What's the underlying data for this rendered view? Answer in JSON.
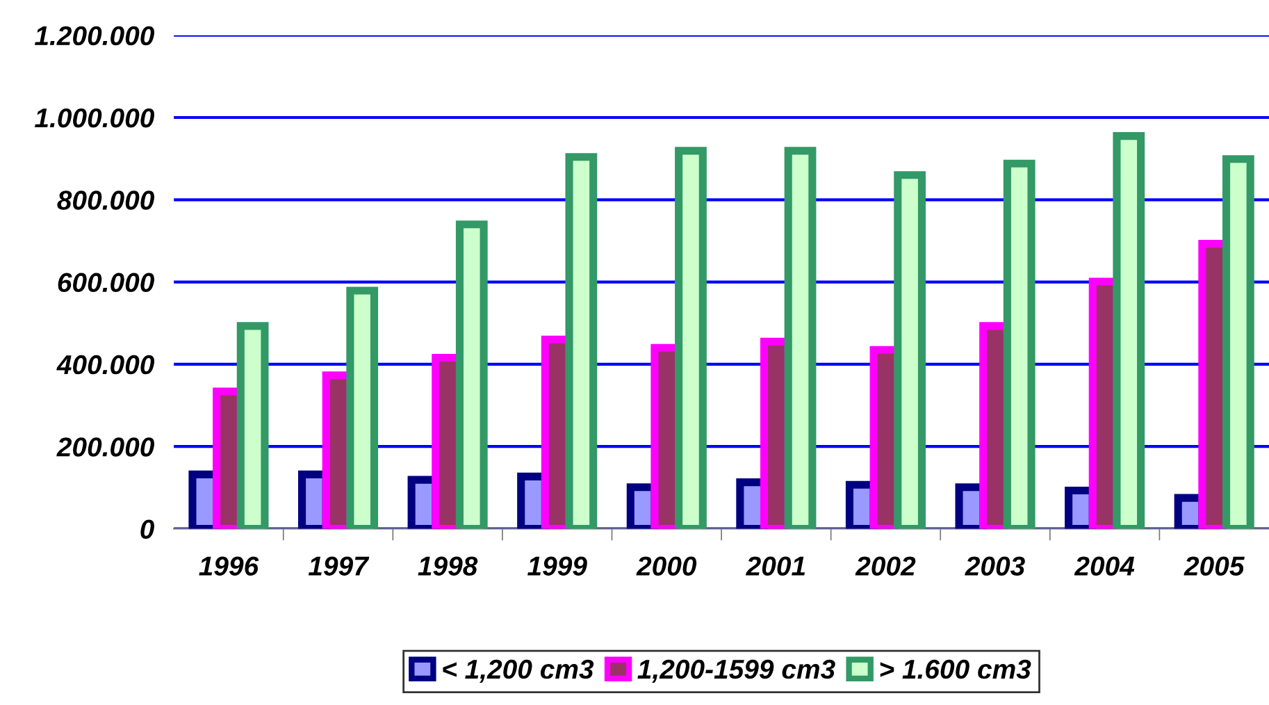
{
  "chart_data": {
    "type": "bar",
    "categories": [
      "1996",
      "1997",
      "1998",
      "1999",
      "2000",
      "2001",
      "2002",
      "2003",
      "2004",
      "2005"
    ],
    "series": [
      {
        "name": "< 1,200 cm3",
        "color": "#9999ff",
        "values": [
          132000,
          132000,
          119000,
          127000,
          101000,
          113000,
          107000,
          101000,
          93000,
          75000
        ]
      },
      {
        "name": "1,200-1599 cm3",
        "color": "#993366",
        "values": [
          334000,
          373000,
          416000,
          460000,
          440000,
          455000,
          435000,
          493000,
          601000,
          693000
        ]
      },
      {
        "name": "> 1.600 cm3",
        "color": "#ccffcc",
        "values": [
          493000,
          579000,
          740000,
          904000,
          919000,
          919000,
          860000,
          888000,
          955000,
          899000
        ]
      }
    ],
    "ylim": [
      0,
      1200000
    ],
    "yticks": [
      {
        "value": 0,
        "label": "0"
      },
      {
        "value": 200000,
        "label": "200.000"
      },
      {
        "value": 400000,
        "label": "400.000"
      },
      {
        "value": 600000,
        "label": "600.000"
      },
      {
        "value": 800000,
        "label": "800.000"
      },
      {
        "value": 1000000,
        "label": "1.000.000"
      },
      {
        "value": 1200000,
        "label": "1.200.000"
      }
    ],
    "grid": "y",
    "legend": "bottom"
  }
}
